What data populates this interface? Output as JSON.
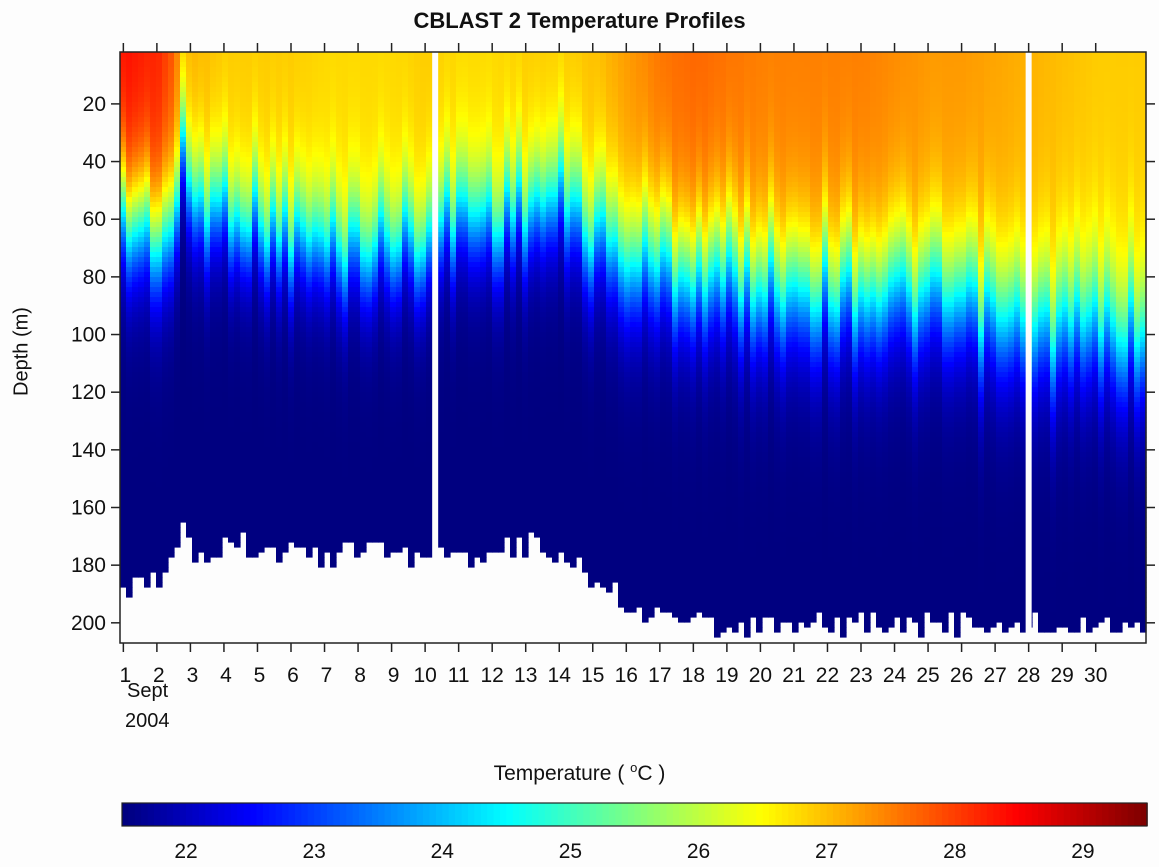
{
  "chart_data": {
    "type": "heatmap",
    "title": "CBLAST 2 Temperature Profiles",
    "ylabel": "Depth (m)",
    "x_date_label": {
      "month": "Sept",
      "year": "2004"
    },
    "x_ticks": [
      "1",
      "2",
      "3",
      "4",
      "5",
      "6",
      "7",
      "8",
      "9",
      "10",
      "11",
      "12",
      "13",
      "14",
      "15",
      "16",
      "17",
      "18",
      "19",
      "20",
      "21",
      "22",
      "23",
      "24",
      "25",
      "26",
      "27",
      "28",
      "29",
      "30"
    ],
    "x_range": [
      0.9,
      31.5
    ],
    "y_ticks": [
      20,
      40,
      60,
      80,
      100,
      120,
      140,
      160,
      180,
      200
    ],
    "y_range": [
      2,
      207
    ],
    "colorbar": {
      "title": "Temperature ( ",
      "title_unit": "o",
      "title_tail": "C )",
      "ticks": [
        22,
        23,
        24,
        25,
        26,
        27,
        28,
        29
      ],
      "range": [
        21.5,
        29.5
      ],
      "colormap": "jet"
    },
    "data_gaps_day": [
      10.3,
      28.0
    ],
    "profiles": [
      {
        "day": 1.0,
        "surface": 28.4,
        "thermocline": 60,
        "width": 26,
        "bottom": 189
      },
      {
        "day": 1.5,
        "surface": 28.3,
        "thermocline": 62,
        "width": 26,
        "bottom": 185
      },
      {
        "day": 2.0,
        "surface": 28.2,
        "thermocline": 65,
        "width": 27,
        "bottom": 185
      },
      {
        "day": 2.4,
        "surface": 27.8,
        "thermocline": 62,
        "width": 26,
        "bottom": 176
      },
      {
        "day": 2.7,
        "surface": 27.0,
        "thermocline": 40,
        "width": 22,
        "bottom": 162
      },
      {
        "day": 3.0,
        "surface": 27.1,
        "thermocline": 52,
        "width": 24,
        "bottom": 176
      },
      {
        "day": 3.5,
        "surface": 27.0,
        "thermocline": 58,
        "width": 24,
        "bottom": 178
      },
      {
        "day": 4.0,
        "surface": 26.9,
        "thermocline": 55,
        "width": 23,
        "bottom": 170
      },
      {
        "day": 5.0,
        "surface": 26.9,
        "thermocline": 62,
        "width": 23,
        "bottom": 174
      },
      {
        "day": 6.0,
        "surface": 26.9,
        "thermocline": 67,
        "width": 24,
        "bottom": 176
      },
      {
        "day": 7.0,
        "surface": 26.8,
        "thermocline": 70,
        "width": 24,
        "bottom": 177
      },
      {
        "day": 8.0,
        "surface": 26.8,
        "thermocline": 70,
        "width": 24,
        "bottom": 174
      },
      {
        "day": 9.0,
        "surface": 26.8,
        "thermocline": 68,
        "width": 24,
        "bottom": 176
      },
      {
        "day": 10.0,
        "surface": 26.9,
        "thermocline": 66,
        "width": 24,
        "bottom": 176
      },
      {
        "day": 11.0,
        "surface": 26.8,
        "thermocline": 58,
        "width": 24,
        "bottom": 177
      },
      {
        "day": 12.0,
        "surface": 26.8,
        "thermocline": 60,
        "width": 24,
        "bottom": 174
      },
      {
        "day": 13.0,
        "surface": 26.9,
        "thermocline": 56,
        "width": 24,
        "bottom": 173
      },
      {
        "day": 14.0,
        "surface": 26.9,
        "thermocline": 54,
        "width": 25,
        "bottom": 176
      },
      {
        "day": 15.0,
        "surface": 27.0,
        "thermocline": 66,
        "width": 26,
        "bottom": 185
      },
      {
        "day": 16.0,
        "surface": 27.3,
        "thermocline": 74,
        "width": 28,
        "bottom": 194
      },
      {
        "day": 17.0,
        "surface": 27.6,
        "thermocline": 76,
        "width": 28,
        "bottom": 198
      },
      {
        "day": 18.0,
        "surface": 27.7,
        "thermocline": 78,
        "width": 28,
        "bottom": 200
      },
      {
        "day": 19.0,
        "surface": 27.6,
        "thermocline": 80,
        "width": 29,
        "bottom": 201
      },
      {
        "day": 20.0,
        "surface": 27.5,
        "thermocline": 82,
        "width": 29,
        "bottom": 201
      },
      {
        "day": 21.0,
        "surface": 27.5,
        "thermocline": 82,
        "width": 29,
        "bottom": 201
      },
      {
        "day": 22.0,
        "surface": 27.5,
        "thermocline": 84,
        "width": 29,
        "bottom": 201
      },
      {
        "day": 23.0,
        "surface": 27.5,
        "thermocline": 84,
        "width": 29,
        "bottom": 200
      },
      {
        "day": 24.0,
        "surface": 27.4,
        "thermocline": 86,
        "width": 29,
        "bottom": 201
      },
      {
        "day": 25.0,
        "surface": 27.3,
        "thermocline": 88,
        "width": 29,
        "bottom": 201
      },
      {
        "day": 26.0,
        "surface": 27.3,
        "thermocline": 90,
        "width": 29,
        "bottom": 201
      },
      {
        "day": 27.0,
        "surface": 27.2,
        "thermocline": 95,
        "width": 30,
        "bottom": 201
      },
      {
        "day": 28.0,
        "surface": 27.1,
        "thermocline": 100,
        "width": 30,
        "bottom": 201
      },
      {
        "day": 29.0,
        "surface": 27.0,
        "thermocline": 98,
        "width": 30,
        "bottom": 201
      },
      {
        "day": 30.0,
        "surface": 26.9,
        "thermocline": 98,
        "width": 30,
        "bottom": 201
      },
      {
        "day": 31.5,
        "surface": 26.9,
        "thermocline": 98,
        "width": 30,
        "bottom": 201
      }
    ],
    "deep_temperature": 21.5,
    "grid": false
  }
}
